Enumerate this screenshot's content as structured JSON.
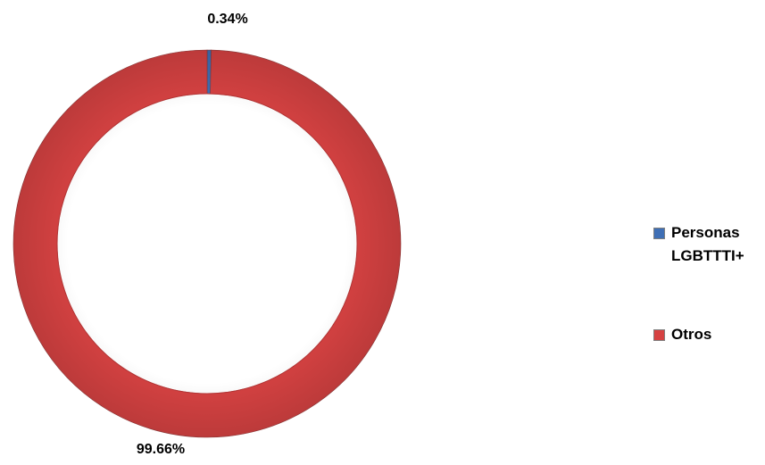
{
  "chart_data": {
    "type": "pie",
    "variant": "doughnut",
    "categories": [
      "Personas LGBTTTI+",
      "Otros"
    ],
    "values": [
      0.34,
      99.66
    ],
    "data_labels": [
      "0.34%",
      "99.66%"
    ],
    "colors": [
      "#3f6fb5",
      "#d64242"
    ],
    "legend": {
      "placement": "right",
      "items": [
        {
          "label": "Personas LGBTTTI+",
          "color": "#3f6fb5"
        },
        {
          "label": "Otros",
          "color": "#d64242"
        }
      ]
    }
  }
}
